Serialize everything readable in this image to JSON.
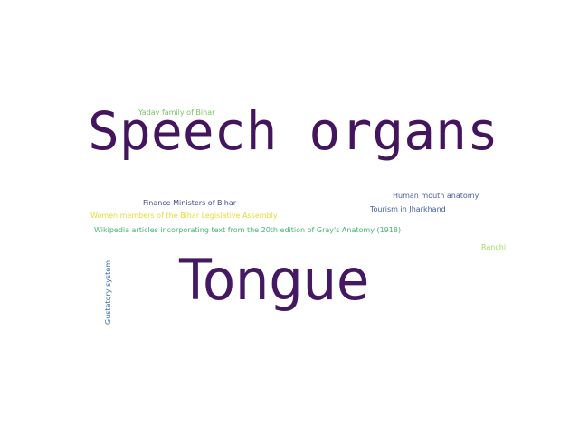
{
  "word_cloud": {
    "words": {
      "speech_organs": "Speech organs",
      "tongue": "Tongue",
      "yadav_family": "Yadav family of Bihar",
      "finance_ministers": "Finance Ministers of Bihar",
      "human_mouth_anatomy": "Human mouth anatomy",
      "tourism_jharkhand": "Tourism in Jharkhand",
      "women_members": "Women members of the Bihar Legislative Assembly",
      "wikipedia_grays": "Wikipedia articles incorporating text from the 20th edition of Gray's Anatomy (1918)",
      "ranchi": "Ranchi",
      "gustatory_system": "Gustatory system"
    },
    "colors": {
      "background": "#ffffff",
      "dark_purple": "#44145f",
      "navy": "#3f4a87",
      "blue": "#3a6ea6",
      "teal_green": "#45b372",
      "light_green": "#79c06b",
      "yellow_green": "#9fda62",
      "yellow": "#e2dd34"
    }
  }
}
